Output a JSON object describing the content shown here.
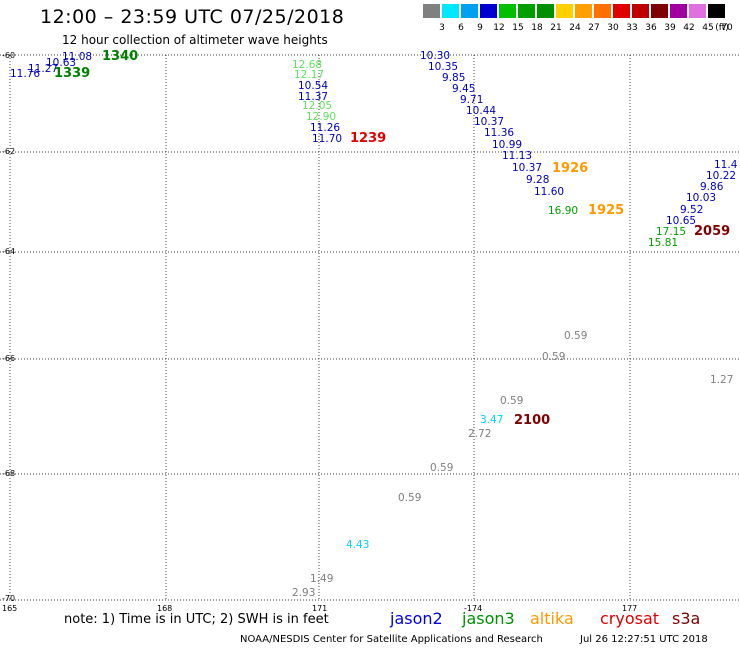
{
  "header": {
    "title": "12:00 – 23:59 UTC 07/25/2018",
    "subtitle": "12 hour collection of altimeter wave heights"
  },
  "color_scale": {
    "labels": [
      "3",
      "6",
      "9",
      "12",
      "15",
      "18",
      "21",
      "24",
      "27",
      "30",
      "33",
      "36",
      "39",
      "42",
      "45",
      "70"
    ],
    "unit": "(ft)",
    "colors": [
      "#808080",
      "#00e8ff",
      "#00a0f0",
      "#0000d0",
      "#00c000",
      "#00a000",
      "#009000",
      "#ffd000",
      "#ffa000",
      "#ff7000",
      "#e00000",
      "#c00000",
      "#800000",
      "#a000a0",
      "#e070e0",
      "#000000"
    ]
  },
  "axes": {
    "lat_labels": [
      "-60",
      "-62",
      "-64",
      "-66",
      "-68",
      "-70"
    ],
    "lon_labels": [
      "165",
      "168",
      "171",
      "-174",
      "177"
    ]
  },
  "values": [
    {
      "text": "11.08",
      "color": "#0000c0"
    },
    {
      "text": "10.63",
      "color": "#0000c0"
    },
    {
      "text": "11.27",
      "color": "#0000c0"
    },
    {
      "text": "11.76",
      "color": "#0000c0"
    },
    {
      "text": "12.68",
      "color": "#60e060"
    },
    {
      "text": "12.17",
      "color": "#60e060"
    },
    {
      "text": "10.54",
      "color": "#0000c0"
    },
    {
      "text": "11.37",
      "color": "#0000c0"
    },
    {
      "text": "12.05",
      "color": "#60e060"
    },
    {
      "text": "12.90",
      "color": "#60e060"
    },
    {
      "text": "11.26",
      "color": "#0000c0"
    },
    {
      "text": "11.70",
      "color": "#0000c0"
    },
    {
      "text": "10.30",
      "color": "#0000c0"
    },
    {
      "text": "10.35",
      "color": "#0000c0"
    },
    {
      "text": "9.85",
      "color": "#0000c0"
    },
    {
      "text": "9.45",
      "color": "#0000c0"
    },
    {
      "text": "9.71",
      "color": "#0000c0"
    },
    {
      "text": "10.44",
      "color": "#0000c0"
    },
    {
      "text": "10.37",
      "color": "#0000c0"
    },
    {
      "text": "11.36",
      "color": "#0000c0"
    },
    {
      "text": "10.99",
      "color": "#0000c0"
    },
    {
      "text": "11.13",
      "color": "#0000c0"
    },
    {
      "text": "10.37",
      "color": "#0000c0"
    },
    {
      "text": "9.28",
      "color": "#0000c0"
    },
    {
      "text": "11.60",
      "color": "#0000c0"
    },
    {
      "text": "16.90",
      "color": "#00a000"
    },
    {
      "text": "11.4",
      "color": "#0000c0"
    },
    {
      "text": "10.22",
      "color": "#0000c0"
    },
    {
      "text": "9.86",
      "color": "#0000c0"
    },
    {
      "text": "10.03",
      "color": "#0000c0"
    },
    {
      "text": "9.52",
      "color": "#0000c0"
    },
    {
      "text": "10.65",
      "color": "#0000c0"
    },
    {
      "text": "17.15",
      "color": "#00a000"
    },
    {
      "text": "15.81",
      "color": "#00a000"
    },
    {
      "text": "0.59",
      "color": "#808080"
    },
    {
      "text": "0.59",
      "color": "#808080"
    },
    {
      "text": "0.59",
      "color": "#808080"
    },
    {
      "text": "3.47",
      "color": "#00d0ff"
    },
    {
      "text": "2.72",
      "color": "#808080"
    },
    {
      "text": "1.27",
      "color": "#808080"
    },
    {
      "text": "0.59",
      "color": "#808080"
    },
    {
      "text": "0.59",
      "color": "#808080"
    },
    {
      "text": "4.43",
      "color": "#00d0ff"
    },
    {
      "text": "1.49",
      "color": "#808080"
    },
    {
      "text": "2.93",
      "color": "#808080"
    }
  ],
  "times": [
    {
      "text": "1340",
      "color": "#008000"
    },
    {
      "text": "1339",
      "color": "#008000"
    },
    {
      "text": "1239",
      "color": "#e00000"
    },
    {
      "text": "1926",
      "color": "#ff9900"
    },
    {
      "text": "1925",
      "color": "#ff9900"
    },
    {
      "text": "2059",
      "color": "#800000"
    },
    {
      "text": "2100",
      "color": "#800000"
    }
  ],
  "footer": {
    "note": "note: 1) Time is in UTC; 2) SWH is in feet",
    "satellites": [
      {
        "name": "jason2",
        "color": "#0000e0"
      },
      {
        "name": "jason3",
        "color": "#009000"
      },
      {
        "name": "altika",
        "color": "#ff9900"
      },
      {
        "name": "cryosat",
        "color": "#e00000"
      },
      {
        "name": "s3a",
        "color": "#800000"
      }
    ],
    "credit": "NOAA/NESDIS Center for Satellite Applications and Research",
    "timestamp": "Jul 26 12:27:51 UTC 2018"
  }
}
